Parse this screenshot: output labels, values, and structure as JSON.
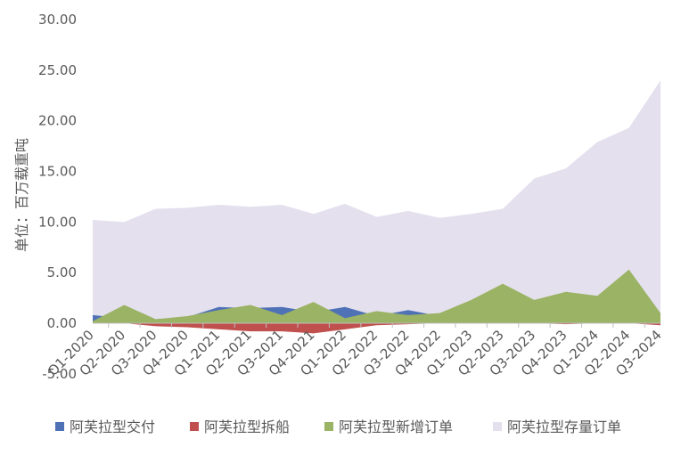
{
  "chart_data": {
    "type": "area",
    "ylabel": "单位：百万载重吨",
    "ylim": [
      -5,
      30
    ],
    "yticks": [
      "-5.00",
      "0.00",
      "5.00",
      "10.00",
      "15.00",
      "20.00",
      "25.00",
      "30.00"
    ],
    "categories": [
      "Q1-2020",
      "Q2-2020",
      "Q3-2020",
      "Q4-2020",
      "Q1-2021",
      "Q2-2021",
      "Q3-2021",
      "Q4-2021",
      "Q1-2022",
      "Q2-2022",
      "Q3-2022",
      "Q4-2022",
      "Q1-2023",
      "Q2-2023",
      "Q3-2023",
      "Q4-2023",
      "Q1-2024",
      "Q2-2024",
      "Q3-2024"
    ],
    "series": [
      {
        "name": "阿芙拉型存量订单",
        "color": "#E4E0EE",
        "values": [
          10.2,
          10.0,
          11.3,
          11.4,
          11.7,
          11.5,
          11.7,
          10.8,
          11.8,
          10.5,
          11.1,
          10.4,
          10.8,
          11.3,
          14.3,
          15.3,
          17.9,
          19.3,
          24.0
        ]
      },
      {
        "name": "阿芙拉型交付",
        "color": "#4F71B6",
        "values": [
          0.8,
          0.5,
          0.4,
          0.6,
          1.6,
          1.5,
          1.6,
          1.1,
          1.6,
          0.7,
          1.3,
          0.7,
          0.4,
          0.4,
          0.4,
          0.4,
          0.5,
          0.6,
          0.7
        ]
      },
      {
        "name": "阿芙拉型新增订单",
        "color": "#9BB364",
        "values": [
          0.2,
          1.8,
          0.4,
          0.7,
          1.3,
          1.8,
          0.8,
          2.1,
          0.5,
          1.2,
          0.8,
          1.0,
          2.3,
          3.9,
          2.3,
          3.1,
          2.7,
          5.3,
          1.0
        ]
      },
      {
        "name": "阿芙拉型拆船",
        "color": "#C0504D",
        "values": [
          0.0,
          0.0,
          -0.3,
          -0.4,
          -0.6,
          -0.8,
          -0.8,
          -1.0,
          -0.6,
          -0.2,
          -0.1,
          0.0,
          0.0,
          0.0,
          0.0,
          -0.1,
          0.0,
          0.0,
          -0.2
        ]
      }
    ],
    "legend": {
      "position": "bottom",
      "order": [
        "阿芙拉型交付",
        "阿芙拉型拆船",
        "阿芙拉型新增订单",
        "阿芙拉型存量订单"
      ]
    },
    "grid": false
  }
}
